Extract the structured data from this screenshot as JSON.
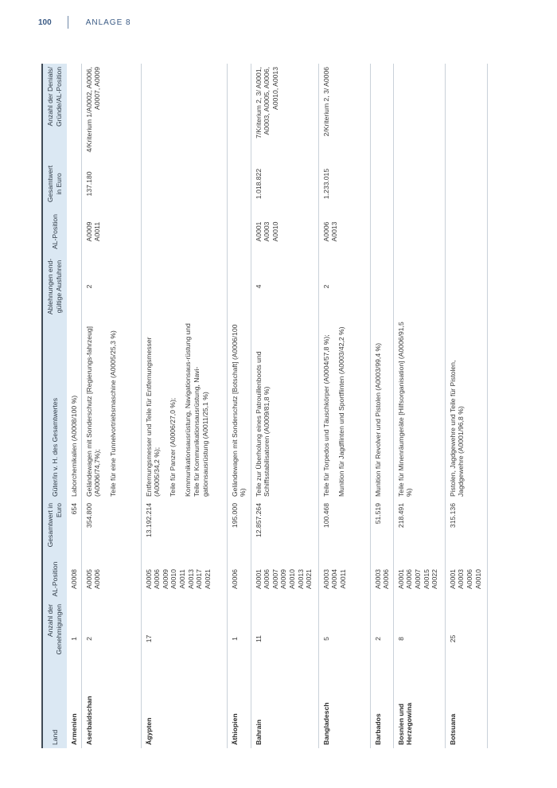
{
  "page_header": {
    "page_number": "100",
    "section": "ANLAGE 8"
  },
  "table": {
    "headers": [
      "Land",
      "Anzahl der Genehmigungen",
      "AL-Position",
      "Gesamtwert in Euro",
      "Güter/in v. H. des Gesamtwertes",
      "Ablehnungen end-gültige Ausfuhren",
      "AL-Position",
      "Gesamtwert in Euro",
      "Anzahl der Denials/ Gründe/AL-Position"
    ],
    "rows": [
      {
        "land": "Armenien",
        "anzahl": "1",
        "al": [
          "A0008"
        ],
        "wert": "654",
        "gueter": [
          "Laborchemikalien (A0008/100 %)"
        ],
        "abl": "",
        "al2": [],
        "wert2": "",
        "denials": ""
      },
      {
        "land": "Aserbaidschan",
        "anzahl": "2",
        "al": [
          "A0005",
          "A0006"
        ],
        "wert": "354.800",
        "gueter": [
          "Geländewagen mit Sonderschutz [Regierungs-fahrzeug] (A0006/74,7%);",
          "Teile für eine Tunnelvortriebsmaschine (A0005/25,3 %)"
        ],
        "abl": "2",
        "al2": [
          "A0009",
          "A0011"
        ],
        "wert2": "137.180",
        "denials": "4/Kriterium 1/A0002, A0006, A0007, A0009"
      },
      {
        "land": "Ägypten",
        "anzahl": "17",
        "al": [
          "A0005",
          "A0006",
          "A0009",
          "A0010",
          "A0011",
          "A0013",
          "A0017",
          "A0021"
        ],
        "wert": "13.192.214",
        "gueter": [
          "Entfernungsmesser und Teile für Entfernungsmesser (A0005/34,2 %);",
          "Teile für Panzer (A0006/27,0 %);",
          "Kommunikationsausrüstung, Navigationsaus-rüstung und Teile für Kommunikationsausrüstung, Navi-gationsausrüstung (A0011/25,1 %)"
        ],
        "abl": "",
        "al2": [],
        "wert2": "",
        "denials": ""
      },
      {
        "land": "Äthiopien",
        "anzahl": "1",
        "al": [
          "A0006"
        ],
        "wert": "195.000",
        "gueter": [
          "Geländewagen mit Sonderschutz [Botschaft] (A0006/100 %)"
        ],
        "abl": "",
        "al2": [],
        "wert2": "",
        "denials": ""
      },
      {
        "land": "Bahrain",
        "anzahl": "11",
        "al": [
          "A0001",
          "A0006",
          "A0007",
          "A0009",
          "A0010",
          "A0013",
          "A0021"
        ],
        "wert": "12.857.264",
        "gueter": [
          "Teile zur Überholung eines Patrouillenboots und Schiffsstabilisatoren (A0009/81,8 %)"
        ],
        "abl": "4",
        "al2": [
          "A0001",
          "A0003",
          "A0010"
        ],
        "wert2": "1.018.822",
        "denials": "7/Kriterium 2, 3/ A0001, A0003, A0005, A0006, A0010, A0013"
      },
      {
        "land": "Bangladesch",
        "anzahl": "5",
        "al": [
          "A0003",
          "A0004",
          "A0011"
        ],
        "wert": "100.468",
        "gueter": [
          "Teile für Torpedos und Täuschkörper (A0004/57,8 %);",
          "Munition für Jagdflinten und Sportflinten (A0003/42,2 %)"
        ],
        "abl": "2",
        "al2": [
          "A0006",
          "A0013"
        ],
        "wert2": "1.233.015",
        "denials": "2/Kriterium 2, 3/ A0006"
      },
      {
        "land": "Barbados",
        "anzahl": "2",
        "al": [
          "A0003",
          "A0006"
        ],
        "wert": "51.519",
        "gueter": [
          "Munition für Revolver und Pistolen (A0003/99,4 %)"
        ],
        "abl": "",
        "al2": [],
        "wert2": "",
        "denials": ""
      },
      {
        "land": "Bosnien und Herzegowina",
        "anzahl": "8",
        "al": [
          "A0001",
          "A0006",
          "A0007",
          "A0015",
          "A0022"
        ],
        "wert": "218.491",
        "gueter": [
          "Teile für Minenräumgeräte [Hilfsorganisation] (A0006/91,5 %)"
        ],
        "abl": "",
        "al2": [],
        "wert2": "",
        "denials": ""
      },
      {
        "land": "Botsuana",
        "anzahl": "25",
        "al": [
          "A0001",
          "A0003",
          "A0006",
          "A0010"
        ],
        "wert": "315.136",
        "gueter": [
          "Pistolen, Jagdgewehre und Teile für Pistolen, Jagdgewehre (A0001/96,8 %)"
        ],
        "abl": "",
        "al2": [],
        "wert2": "",
        "denials": ""
      }
    ]
  },
  "colors": {
    "header_bg": "#dbe8f3",
    "accent": "#3b5b85"
  }
}
